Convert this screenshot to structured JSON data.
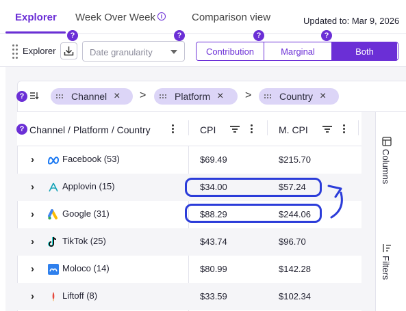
{
  "tabs": [
    {
      "label": "Explorer"
    },
    {
      "label": "Week Over Week"
    },
    {
      "label": "Comparison view"
    }
  ],
  "info_glyph": "i",
  "updated": "Updated to: Mar 9, 2026",
  "help_glyph": "?",
  "toolbar": {
    "title": "Explorer",
    "granularity_placeholder": "Date granularity",
    "segments": [
      "Contribution",
      "Marginal",
      "Both"
    ],
    "active_segment": "Both"
  },
  "grouping": {
    "chips": [
      "Channel",
      "Platform",
      "Country"
    ],
    "separator": ">",
    "remove_glyph": "×"
  },
  "table": {
    "headers": {
      "dimension": "Channel / Platform / Country",
      "cpi": "CPI",
      "mcpi": "M. CPI"
    },
    "expand_glyph": "›",
    "rows": [
      {
        "name": "Facebook",
        "count": "(53)",
        "cpi": "$69.49",
        "mcpi": "$215.70",
        "icon": "meta-icon"
      },
      {
        "name": "Applovin",
        "count": "(15)",
        "cpi": "$34.00",
        "mcpi": "$57.24",
        "icon": "applovin-icon"
      },
      {
        "name": "Google",
        "count": "(31)",
        "cpi": "$88.29",
        "mcpi": "$244.06",
        "icon": "google-ads-icon"
      },
      {
        "name": "TikTok",
        "count": "(25)",
        "cpi": "$43.74",
        "mcpi": "$96.70",
        "icon": "tiktok-icon"
      },
      {
        "name": "Moloco",
        "count": "(14)",
        "cpi": "$80.99",
        "mcpi": "$142.28",
        "icon": "moloco-icon"
      },
      {
        "name": "Liftoff",
        "count": "(8)",
        "cpi": "$33.59",
        "mcpi": "$102.34",
        "icon": "liftoff-icon"
      }
    ]
  },
  "rail": {
    "columns": "Columns",
    "filters": "Filters"
  },
  "colors": {
    "accent": "#6b2fd6",
    "highlight": "#2b3cd9",
    "chip_bg": "#dcd5f7"
  }
}
